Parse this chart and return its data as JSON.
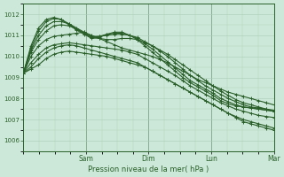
{
  "title": "",
  "xlabel": "Pression niveau de la mer( hPa )",
  "ylim": [
    1005.5,
    1012.5
  ],
  "xlim": [
    0,
    96
  ],
  "yticks": [
    1006,
    1007,
    1008,
    1009,
    1010,
    1011,
    1012
  ],
  "day_ticks": [
    24,
    48,
    72,
    96
  ],
  "day_labels": [
    "Sam",
    "Dim",
    "Lun",
    "Mar"
  ],
  "bg_color": "#cce8d8",
  "grid_color": "#aaccb8",
  "line_color": "#2a5f2a",
  "line_width": 0.8,
  "series": [
    [
      1009.2,
      1009.4,
      1009.6,
      1009.9,
      1010.1,
      1010.2,
      1010.25,
      1010.2,
      1010.15,
      1010.1,
      1010.05,
      1010.0,
      1009.9,
      1009.8,
      1009.7,
      1009.6,
      1009.5,
      1009.3,
      1009.1,
      1008.9,
      1008.7,
      1008.5,
      1008.3,
      1008.1,
      1007.9,
      1007.7,
      1007.5,
      1007.3,
      1007.1,
      1006.9,
      1006.8,
      1006.7,
      1006.6,
      1006.5
    ],
    [
      1009.2,
      1009.5,
      1009.9,
      1010.2,
      1010.4,
      1010.5,
      1010.55,
      1010.5,
      1010.4,
      1010.3,
      1010.2,
      1010.1,
      1010.0,
      1009.9,
      1009.8,
      1009.7,
      1009.5,
      1009.3,
      1009.1,
      1008.9,
      1008.7,
      1008.5,
      1008.3,
      1008.1,
      1007.9,
      1007.7,
      1007.5,
      1007.3,
      1007.15,
      1007.0,
      1006.9,
      1006.8,
      1006.7,
      1006.6
    ],
    [
      1009.2,
      1009.7,
      1010.1,
      1010.4,
      1010.55,
      1010.6,
      1010.65,
      1010.6,
      1010.55,
      1010.5,
      1010.45,
      1010.4,
      1010.35,
      1010.3,
      1010.2,
      1010.1,
      1009.9,
      1009.7,
      1009.5,
      1009.3,
      1009.1,
      1008.85,
      1008.6,
      1008.4,
      1008.2,
      1008.0,
      1007.8,
      1007.65,
      1007.5,
      1007.4,
      1007.3,
      1007.2,
      1007.15,
      1007.1
    ],
    [
      1009.2,
      1010.0,
      1010.5,
      1010.8,
      1010.95,
      1011.0,
      1011.05,
      1011.1,
      1011.15,
      1011.0,
      1010.85,
      1010.7,
      1010.55,
      1010.4,
      1010.3,
      1010.2,
      1010.1,
      1010.0,
      1009.85,
      1009.7,
      1009.5,
      1009.3,
      1009.1,
      1008.9,
      1008.75,
      1008.6,
      1008.45,
      1008.3,
      1008.2,
      1008.1,
      1008.0,
      1007.9,
      1007.8,
      1007.7
    ],
    [
      1009.2,
      1010.2,
      1010.8,
      1011.2,
      1011.45,
      1011.5,
      1011.45,
      1011.3,
      1011.1,
      1010.9,
      1010.85,
      1010.8,
      1010.8,
      1010.85,
      1010.85,
      1010.8,
      1010.65,
      1010.5,
      1010.3,
      1010.1,
      1009.85,
      1009.6,
      1009.35,
      1009.1,
      1008.85,
      1008.6,
      1008.35,
      1008.15,
      1007.95,
      1007.8,
      1007.7,
      1007.6,
      1007.5,
      1007.4
    ],
    [
      1009.2,
      1010.3,
      1011.0,
      1011.45,
      1011.65,
      1011.65,
      1011.55,
      1011.35,
      1011.15,
      1010.95,
      1010.95,
      1011.0,
      1011.05,
      1011.05,
      1011.0,
      1010.9,
      1010.7,
      1010.5,
      1010.25,
      1010.0,
      1009.7,
      1009.4,
      1009.1,
      1008.85,
      1008.6,
      1008.4,
      1008.2,
      1008.0,
      1007.85,
      1007.7,
      1007.6,
      1007.55,
      1007.5,
      1007.45
    ],
    [
      1009.2,
      1010.4,
      1011.2,
      1011.65,
      1011.8,
      1011.75,
      1011.55,
      1011.3,
      1011.1,
      1010.9,
      1010.95,
      1011.05,
      1011.1,
      1011.1,
      1011.0,
      1010.85,
      1010.6,
      1010.35,
      1010.05,
      1009.75,
      1009.45,
      1009.15,
      1008.85,
      1008.65,
      1008.45,
      1008.25,
      1008.0,
      1007.85,
      1007.7,
      1007.6,
      1007.55,
      1007.5,
      1007.45,
      1007.4
    ],
    [
      1009.2,
      1010.5,
      1011.35,
      1011.75,
      1011.85,
      1011.75,
      1011.5,
      1011.25,
      1011.05,
      1010.85,
      1010.9,
      1011.05,
      1011.15,
      1011.15,
      1011.0,
      1010.8,
      1010.5,
      1010.2,
      1009.9,
      1009.6,
      1009.3,
      1009.0,
      1008.75,
      1008.55,
      1008.35,
      1008.15,
      1007.9,
      1007.75,
      1007.65,
      1007.6,
      1007.55,
      1007.5,
      1007.45,
      1007.4
    ]
  ]
}
